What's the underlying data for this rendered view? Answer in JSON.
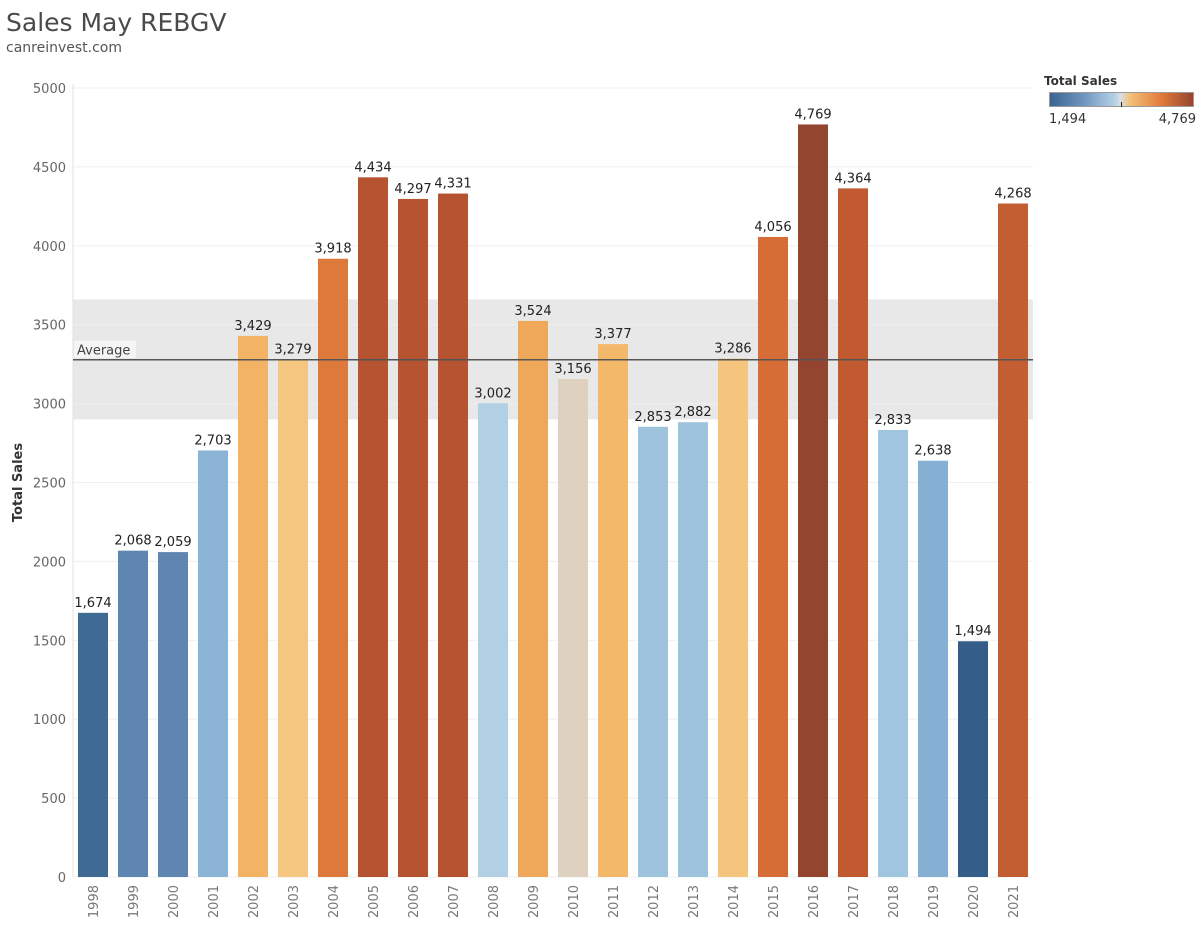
{
  "title": "Sales May REBGV",
  "subtitle": "canreinvest.com",
  "legend": {
    "title": "Total Sales",
    "min_label": "1,494",
    "max_label": "4,769",
    "color_low": "#3a6592",
    "color_mid": "#dcdfe2",
    "color_high": "#934530"
  },
  "chart_data": {
    "type": "bar",
    "title": "Sales May REBGV",
    "subtitle": "canreinvest.com",
    "xlabel": "",
    "ylabel": "Total Sales",
    "ylim": [
      0,
      5000
    ],
    "yticks": [
      0,
      500,
      1000,
      1500,
      2000,
      2500,
      3000,
      3500,
      4000,
      4500,
      5000
    ],
    "grid": true,
    "legend_position": "top-right",
    "categories": [
      "1998",
      "1999",
      "2000",
      "2001",
      "2002",
      "2003",
      "2004",
      "2005",
      "2006",
      "2007",
      "2008",
      "2009",
      "2010",
      "2011",
      "2012",
      "2013",
      "2014",
      "2015",
      "2016",
      "2017",
      "2018",
      "2019",
      "2020",
      "2021"
    ],
    "values": [
      1674,
      2068,
      2059,
      2703,
      3429,
      3279,
      3918,
      4434,
      4297,
      4331,
      3002,
      3524,
      3156,
      3377,
      2853,
      2882,
      3286,
      4056,
      4769,
      4364,
      2833,
      2638,
      1494,
      4268
    ],
    "value_labels": [
      "1,674",
      "2,068",
      "2,059",
      "2,703",
      "3,429",
      "3,279",
      "3,918",
      "4,434",
      "4,297",
      "4,331",
      "3,002",
      "3,524",
      "3,156",
      "3,377",
      "2,853",
      "2,882",
      "3,286",
      "4,056",
      "4,769",
      "4,364",
      "2,833",
      "2,638",
      "1,494",
      "4,268"
    ],
    "colors": [
      "#3e6a94",
      "#5f86b0",
      "#5f86b0",
      "#8bb4d6",
      "#f2b365",
      "#f5c67f",
      "#dd7a3b",
      "#b65331",
      "#b65331",
      "#b65331",
      "#b2d0e3",
      "#efa85a",
      "#dfd1bf",
      "#f4b86b",
      "#9dc3dd",
      "#9dc3dd",
      "#f5c57e",
      "#d66c36",
      "#934530",
      "#c15a30",
      "#a0c6df",
      "#86b0d3",
      "#355d8a",
      "#c25e32"
    ],
    "reference_line": {
      "label": "Average",
      "value": 3278
    },
    "reference_band": [
      2900,
      3660
    ]
  }
}
